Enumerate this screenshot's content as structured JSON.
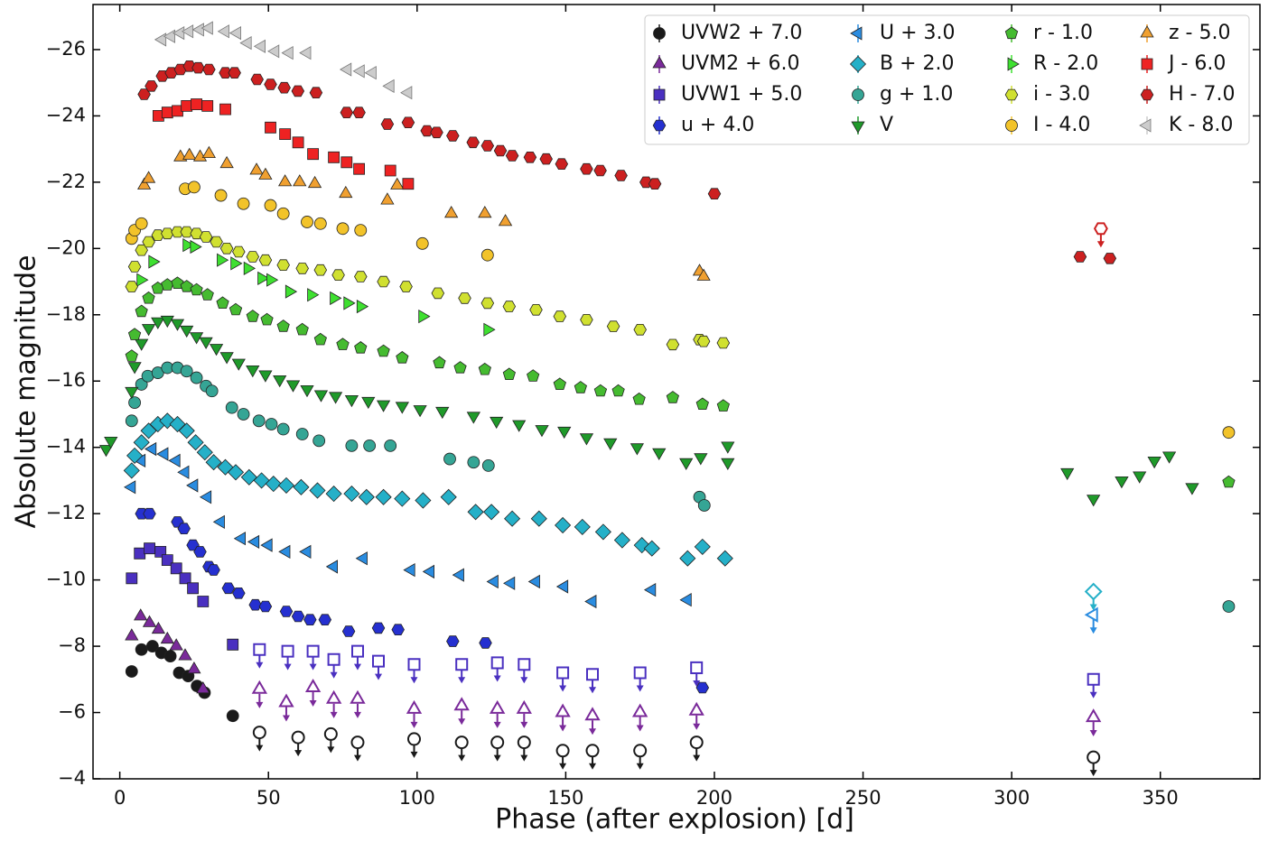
{
  "chart_data": {
    "type": "scatter",
    "x_label": "Phase (after explosion) [d]",
    "y_label": "Absolute magnitude",
    "xlim": [
      -9,
      383.5
    ],
    "ylim": [
      -4,
      -27.36
    ],
    "xticks": [
      0,
      50,
      100,
      150,
      200,
      250,
      300,
      350
    ],
    "yticks": [
      {
        "value": -26,
        "label": "−26"
      },
      {
        "value": -24,
        "label": "−24"
      },
      {
        "value": -22,
        "label": "−22"
      },
      {
        "value": -20,
        "label": "−20"
      },
      {
        "value": -18,
        "label": "−18"
      },
      {
        "value": -16,
        "label": "−16"
      },
      {
        "value": -14,
        "label": "−14"
      },
      {
        "value": -12,
        "label": "−12"
      },
      {
        "value": -10,
        "label": "−10"
      },
      {
        "value": -8,
        "label": "−8"
      },
      {
        "value": -6,
        "label": "−6"
      },
      {
        "value": -4,
        "label": "−4"
      }
    ],
    "legend": "upper right",
    "series": [
      {
        "name": "UVW2 + 7.0",
        "color": "#1a1a1a",
        "marker": "circle",
        "x": [
          4,
          7.3,
          11,
          14,
          17,
          20,
          23,
          26,
          28.5,
          38
        ],
        "values": [
          -7.24,
          -7.9,
          -8.0,
          -7.8,
          -7.7,
          -7.2,
          -7.1,
          -6.8,
          -6.6,
          -5.9
        ],
        "upper_limits": {
          "x": [
            47,
            60,
            71,
            80,
            99,
            115,
            127,
            136,
            149,
            159,
            175,
            194,
            327.5
          ],
          "values": [
            -5.4,
            -5.25,
            -5.35,
            -5.1,
            -5.2,
            -5.1,
            -5.1,
            -5.1,
            -4.85,
            -4.85,
            -4.85,
            -5.1,
            -4.65
          ]
        }
      },
      {
        "name": "UVM2 + 6.0",
        "color": "#7a2a9a",
        "marker": "triangle-up",
        "x": [
          4,
          7,
          10,
          13,
          16,
          19,
          22,
          25,
          28
        ],
        "values": [
          -8.3,
          -8.9,
          -8.7,
          -8.5,
          -8.2,
          -8.0,
          -7.7,
          -7.3,
          -6.7
        ],
        "upper_limits": {
          "x": [
            47,
            56,
            65,
            72,
            80,
            99,
            115,
            127,
            136,
            149,
            159,
            175,
            194,
            327.5
          ],
          "values": [
            -6.7,
            -6.3,
            -6.75,
            -6.4,
            -6.4,
            -6.1,
            -6.2,
            -6.1,
            -6.1,
            -6.0,
            -5.9,
            -6.0,
            -6.05,
            -5.85
          ]
        }
      },
      {
        "name": "UVW1 + 5.0",
        "color": "#4a30c0",
        "marker": "square",
        "x": [
          4,
          6.7,
          10,
          13.7,
          16,
          19,
          22,
          24.6,
          28,
          38
        ],
        "values": [
          -10.05,
          -10.8,
          -10.95,
          -10.85,
          -10.6,
          -10.35,
          -10.05,
          -9.75,
          -9.35,
          -8.05
        ],
        "upper_limits": {
          "x": [
            47,
            56.5,
            65,
            72,
            80,
            87,
            99,
            115,
            127,
            136,
            149,
            159,
            175,
            194,
            327.5
          ],
          "values": [
            -7.9,
            -7.85,
            -7.85,
            -7.6,
            -7.85,
            -7.55,
            -7.45,
            -7.45,
            -7.5,
            -7.45,
            -7.2,
            -7.15,
            -7.2,
            -7.35,
            -7.0
          ]
        }
      },
      {
        "name": "u + 4.0",
        "color": "#2530d0",
        "marker": "hexagon",
        "x": [
          7.3,
          10,
          19.4,
          21.6,
          24.6,
          27,
          30,
          31.6,
          36.5,
          40,
          45.6,
          49,
          56,
          60,
          64,
          69,
          77,
          87,
          93.6,
          112,
          123,
          196
        ],
        "values": [
          -12.0,
          -12.0,
          -11.75,
          -11.55,
          -11.05,
          -10.85,
          -10.4,
          -10.3,
          -9.75,
          -9.6,
          -9.25,
          -9.2,
          -9.05,
          -8.9,
          -8.8,
          -8.8,
          -8.45,
          -8.55,
          -8.5,
          -8.15,
          -8.1,
          -6.75
        ]
      },
      {
        "name": "U + 3.0",
        "color": "#2a8ce0",
        "marker": "triangle-left",
        "x": [
          4,
          7.3,
          11,
          15,
          19,
          22,
          25,
          29.5,
          34,
          41,
          45.6,
          50,
          56,
          63,
          72,
          82,
          98,
          104.5,
          114.5,
          126,
          131.6,
          140,
          149.5,
          159,
          179,
          191
        ],
        "values": [
          -12.8,
          -13.6,
          -13.95,
          -13.8,
          -13.6,
          -13.25,
          -12.85,
          -12.5,
          -11.75,
          -11.25,
          -11.15,
          -11.05,
          -10.85,
          -10.85,
          -10.4,
          -10.65,
          -10.3,
          -10.25,
          -10.15,
          -9.95,
          -9.9,
          -9.95,
          -9.8,
          -9.35,
          -9.7,
          -9.4
        ],
        "upper_limits": {
          "x": [
            327.5
          ],
          "values": [
            -8.95
          ]
        }
      },
      {
        "name": "B + 2.0",
        "color": "#25b0c8",
        "marker": "diamond",
        "x": [
          4,
          5,
          7.3,
          9.7,
          12.8,
          16,
          19.4,
          22.5,
          25.5,
          28.6,
          31.6,
          35.5,
          39,
          43.5,
          47.7,
          51.7,
          56,
          61,
          66.5,
          72,
          78,
          83,
          88.7,
          95,
          102,
          110.6,
          119.7,
          125,
          132,
          141,
          149,
          155.6,
          162.6,
          169,
          175.6,
          179,
          191,
          196,
          203.6
        ],
        "values": [
          -13.3,
          -13.75,
          -14.15,
          -14.5,
          -14.7,
          -14.8,
          -14.7,
          -14.5,
          -14.15,
          -13.85,
          -13.55,
          -13.4,
          -13.25,
          -13.1,
          -13.0,
          -12.9,
          -12.85,
          -12.8,
          -12.7,
          -12.6,
          -12.6,
          -12.5,
          -12.5,
          -12.45,
          -12.4,
          -12.5,
          -12.05,
          -12.05,
          -11.85,
          -11.85,
          -11.65,
          -11.6,
          -11.45,
          -11.2,
          -11.05,
          -10.95,
          -10.65,
          -11.0,
          -10.65
        ],
        "upper_limits": {
          "x": [
            327.5
          ],
          "values": [
            -9.65
          ]
        }
      },
      {
        "name": "g + 1.0",
        "color": "#35a595",
        "marker": "circle",
        "x": [
          4,
          5,
          7.3,
          9.4,
          12.8,
          16,
          19.4,
          22.5,
          25.8,
          29,
          31,
          37.7,
          41.6,
          46.8,
          51,
          55,
          61.4,
          67,
          78,
          84,
          91,
          111,
          119,
          124,
          195,
          196.6,
          373
        ],
        "values": [
          -14.8,
          -15.35,
          -15.9,
          -16.15,
          -16.25,
          -16.4,
          -16.4,
          -16.3,
          -16.1,
          -15.85,
          -15.7,
          -15.2,
          -15.0,
          -14.8,
          -14.7,
          -14.55,
          -14.4,
          -14.2,
          -14.05,
          -14.05,
          -14.05,
          -13.65,
          -13.55,
          -13.45,
          -12.5,
          -12.25,
          -9.2
        ]
      },
      {
        "name": "V",
        "color": "#1f9a2a",
        "marker": "triangle-down",
        "x": [
          -4.6,
          -3,
          4,
          5,
          7.3,
          9.7,
          12.8,
          16,
          19.4,
          22.5,
          25.8,
          29,
          32.5,
          36,
          40,
          44.7,
          49,
          53.8,
          58.3,
          63,
          67.7,
          72.6,
          78,
          83.6,
          88.7,
          95,
          101,
          108.5,
          119,
          126.7,
          134.3,
          142,
          149.5,
          157,
          165,
          174,
          181.4,
          190.5,
          195.4,
          204.5,
          204.5,
          318.7,
          327.5,
          337,
          343,
          348,
          353,
          360.7
        ],
        "values": [
          -13.95,
          -14.2,
          -15.7,
          -16.45,
          -17.15,
          -17.6,
          -17.8,
          -17.85,
          -17.75,
          -17.55,
          -17.35,
          -17.2,
          -17.0,
          -16.75,
          -16.55,
          -16.35,
          -16.2,
          -16.05,
          -15.9,
          -15.75,
          -15.6,
          -15.55,
          -15.45,
          -15.4,
          -15.3,
          -15.25,
          -15.15,
          -15.1,
          -14.95,
          -14.8,
          -14.7,
          -14.55,
          -14.5,
          -14.3,
          -14.15,
          -14.0,
          -13.85,
          -13.55,
          -13.7,
          -13.55,
          -14.05,
          -13.25,
          -12.45,
          -13.0,
          -13.15,
          -13.6,
          -13.75,
          -12.8
        ]
      },
      {
        "name": "r - 1.0",
        "color": "#45bb30",
        "marker": "pentagon",
        "x": [
          4,
          5,
          7.3,
          9.7,
          12.8,
          16,
          19.4,
          22.5,
          25.8,
          29.5,
          34.6,
          39,
          44.7,
          49.5,
          55,
          61.4,
          67.5,
          75,
          81,
          88.7,
          95,
          107.5,
          114.5,
          122.8,
          131,
          139,
          148,
          155,
          161.7,
          167.7,
          174.7,
          186,
          196,
          203,
          373
        ],
        "values": [
          -16.75,
          -17.4,
          -18.1,
          -18.5,
          -18.8,
          -18.9,
          -18.95,
          -18.85,
          -18.75,
          -18.6,
          -18.35,
          -18.15,
          -17.95,
          -17.85,
          -17.65,
          -17.55,
          -17.25,
          -17.1,
          -17.0,
          -16.9,
          -16.7,
          -16.55,
          -16.4,
          -16.35,
          -16.2,
          -16.15,
          -15.9,
          -15.8,
          -15.7,
          -15.7,
          -15.45,
          -15.5,
          -15.3,
          -15.25,
          -12.95
        ]
      },
      {
        "name": "R - 2.0",
        "color": "#3ee030",
        "marker": "triangle-right",
        "x": [
          7,
          11,
          22.5,
          25,
          34,
          38.6,
          43,
          47.7,
          50.7,
          57,
          64.4,
          72,
          76.6,
          81,
          101.8,
          123.7
        ],
        "values": [
          -19.05,
          -19.6,
          -20.1,
          -20.05,
          -19.65,
          -19.55,
          -19.4,
          -19.1,
          -19.05,
          -18.7,
          -18.6,
          -18.5,
          -18.35,
          -18.25,
          -17.95,
          -17.55
        ]
      },
      {
        "name": "i - 3.0",
        "color": "#d0e030",
        "marker": "hexagon",
        "x": [
          4,
          5,
          7.3,
          9.7,
          12.8,
          16,
          19.4,
          22.5,
          25.8,
          29,
          32.5,
          36,
          40,
          44.7,
          49,
          55,
          61.4,
          67.5,
          73.5,
          81,
          88.7,
          96.3,
          107,
          116,
          123.7,
          131,
          140,
          148,
          157,
          166,
          175,
          186,
          195,
          196.4,
          203
        ],
        "values": [
          -18.85,
          -19.45,
          -19.95,
          -20.2,
          -20.4,
          -20.45,
          -20.5,
          -20.5,
          -20.45,
          -20.35,
          -20.2,
          -20.0,
          -19.9,
          -19.75,
          -19.65,
          -19.5,
          -19.4,
          -19.35,
          -19.2,
          -19.15,
          -19.0,
          -18.85,
          -18.65,
          -18.5,
          -18.35,
          -18.25,
          -18.15,
          -17.95,
          -17.85,
          -17.65,
          -17.55,
          -17.1,
          -17.25,
          -17.2,
          -17.15
        ]
      },
      {
        "name": "I - 4.0",
        "color": "#f2c32a",
        "marker": "circle",
        "x": [
          4,
          5,
          7.3,
          22,
          25,
          34,
          41.6,
          50.7,
          55,
          63,
          67.5,
          75,
          81,
          101.8,
          123.7,
          373
        ],
        "values": [
          -20.3,
          -20.55,
          -20.75,
          -21.8,
          -21.85,
          -21.6,
          -21.35,
          -21.3,
          -21.05,
          -20.8,
          -20.75,
          -20.6,
          -20.55,
          -20.15,
          -19.8,
          -14.45
        ]
      },
      {
        "name": "z - 5.0",
        "color": "#f0a030",
        "marker": "triangle-up",
        "x": [
          8.2,
          9.7,
          20.4,
          23.4,
          27,
          30,
          36,
          46,
          49,
          55.6,
          60.5,
          65.6,
          76,
          90,
          93.3,
          111.5,
          122.8,
          129.7,
          195,
          196.4
        ],
        "values": [
          -21.9,
          -22.1,
          -22.75,
          -22.8,
          -22.75,
          -22.85,
          -22.55,
          -22.35,
          -22.2,
          -22.0,
          -22.0,
          -21.95,
          -21.65,
          -21.45,
          -21.9,
          -21.05,
          -21.05,
          -20.8,
          -19.3,
          -19.15
        ]
      },
      {
        "name": "J - 6.0",
        "color": "#ee2222",
        "marker": "square",
        "x": [
          13,
          16,
          19.4,
          22.5,
          25.8,
          29.5,
          35.5,
          50.7,
          55.6,
          60,
          65,
          72,
          76.3,
          80.5,
          91,
          97
        ],
        "values": [
          -24.0,
          -24.1,
          -24.15,
          -24.3,
          -24.35,
          -24.3,
          -24.2,
          -23.65,
          -23.45,
          -23.2,
          -22.85,
          -22.75,
          -22.6,
          -22.4,
          -22.35,
          -21.95
        ]
      },
      {
        "name": "H - 7.0",
        "color": "#cc2020",
        "marker": "hexagon",
        "x": [
          8.2,
          10.6,
          14.3,
          17.3,
          20.4,
          23.4,
          26.4,
          30,
          35.5,
          38.6,
          46.2,
          50.7,
          55.3,
          59.9,
          66,
          76.3,
          80.5,
          90,
          97,
          103.3,
          106.6,
          112,
          118.8,
          123.7,
          128,
          132,
          138,
          143.4,
          148.6,
          157,
          161.6,
          168.6,
          177,
          180,
          200,
          323,
          333
        ],
        "values": [
          -24.65,
          -24.9,
          -25.2,
          -25.3,
          -25.4,
          -25.5,
          -25.45,
          -25.4,
          -25.3,
          -25.3,
          -25.1,
          -24.95,
          -24.85,
          -24.75,
          -24.7,
          -24.1,
          -24.1,
          -23.75,
          -23.8,
          -23.55,
          -23.5,
          -23.4,
          -23.2,
          -23.1,
          -22.95,
          -22.8,
          -22.75,
          -22.7,
          -22.55,
          -22.4,
          -22.35,
          -22.2,
          -22.0,
          -21.95,
          -21.65,
          -19.75,
          -19.7
        ],
        "upper_limits": {
          "x": [
            330
          ],
          "values": [
            -20.6
          ]
        }
      },
      {
        "name": "K - 8.0",
        "color": "#cccccc",
        "marker": "triangle-left",
        "x": [
          14.3,
          17.3,
          20.4,
          23.4,
          27,
          30,
          35.5,
          39.5,
          43,
          47.7,
          52.3,
          57,
          63,
          76.6,
          81,
          85,
          91,
          97
        ],
        "values": [
          -26.3,
          -26.4,
          -26.5,
          -26.55,
          -26.6,
          -26.65,
          -26.55,
          -26.5,
          -26.2,
          -26.1,
          -25.95,
          -25.9,
          -25.9,
          -25.4,
          -25.35,
          -25.3,
          -24.9,
          -24.7
        ]
      }
    ]
  }
}
